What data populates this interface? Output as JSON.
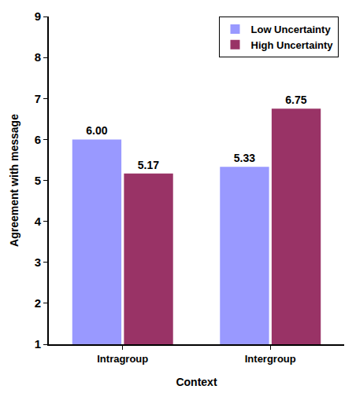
{
  "chart_data": {
    "type": "bar",
    "x_label": "Context",
    "y_label": "Agreement with message",
    "categories": [
      "Intragroup",
      "Intergroup"
    ],
    "series": [
      {
        "name": "Low Uncertainty",
        "color": "#9999ff",
        "values": [
          6.0,
          5.33
        ],
        "value_labels": [
          "6.00",
          "5.33"
        ]
      },
      {
        "name": "High Uncertainty",
        "color": "#993366",
        "values": [
          5.17,
          6.75
        ],
        "value_labels": [
          "5.17",
          "6.75"
        ]
      }
    ],
    "ylim": [
      1,
      9
    ],
    "yticks": [
      1,
      2,
      3,
      4,
      5,
      6,
      7,
      8,
      9
    ],
    "grid": false,
    "legend": "upper right",
    "data_labels": true
  }
}
